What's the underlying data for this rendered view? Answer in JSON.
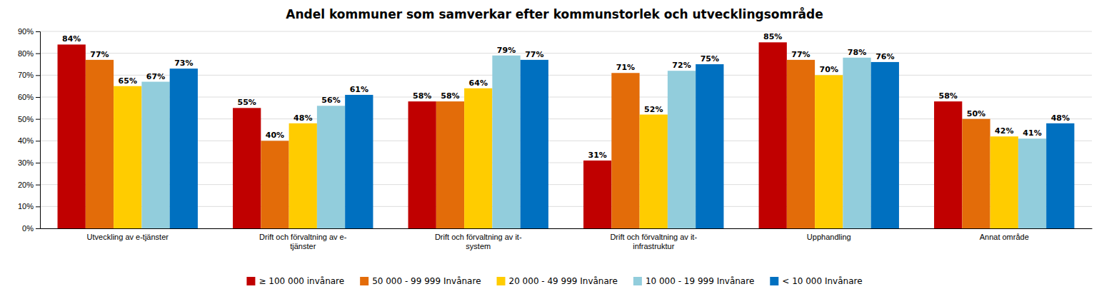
{
  "chart_data": {
    "type": "bar",
    "title": "Andel kommuner som samverkar  efter kommunstorlek och utvecklingsområde",
    "categories": [
      "Utveckling av e-tjänster",
      "Drift och förvaltning av e-\ntjänster",
      "Drift och förvaltning av it-\nsystem",
      "Drift och förvaltning av it-\ninfrastruktur",
      "Upphandling",
      "Annat område"
    ],
    "series": [
      {
        "name": "≥ 100 000 invånare",
        "color": "#C00000",
        "values": [
          84,
          55,
          58,
          31,
          85,
          58
        ],
        "value_labels": [
          "84%",
          "55%",
          "58%",
          "31%",
          "85%",
          "58%"
        ]
      },
      {
        "name": "50 000 - 99 999 Invånare",
        "color": "#E36C09",
        "values": [
          77,
          40,
          58,
          71,
          77,
          50
        ],
        "value_labels": [
          "77%",
          "40%",
          "58%",
          "71%",
          "77%",
          "50%"
        ]
      },
      {
        "name": "20 000 - 49 999 Invånare",
        "color": "#FFCC00",
        "values": [
          65,
          48,
          64,
          52,
          70,
          42
        ],
        "value_labels": [
          "65%",
          "48%",
          "64%",
          "52%",
          "70%",
          "42%"
        ]
      },
      {
        "name": "10 000 - 19 999 Invånare",
        "color": "#92CDDC",
        "values": [
          67,
          56,
          79,
          72,
          78,
          41
        ],
        "value_labels": [
          "67%",
          "56%",
          "79%",
          "72%",
          "78%",
          "41%"
        ]
      },
      {
        "name": "< 10 000 Invånare",
        "color": "#0070C0",
        "values": [
          73,
          61,
          77,
          75,
          76,
          48
        ],
        "value_labels": [
          "73%",
          "61%",
          "77%",
          "75%",
          "76%",
          "48%"
        ]
      }
    ],
    "ylim": [
      0,
      90
    ],
    "yticks": [
      {
        "value": 0,
        "label": "0%"
      },
      {
        "value": 10,
        "label": "10%"
      },
      {
        "value": 20,
        "label": "20%"
      },
      {
        "value": 30,
        "label": "30%"
      },
      {
        "value": 40,
        "label": "40%"
      },
      {
        "value": 50,
        "label": "50%"
      },
      {
        "value": 60,
        "label": "60%"
      },
      {
        "value": 70,
        "label": "70%"
      },
      {
        "value": 80,
        "label": "80%"
      },
      {
        "value": 90,
        "label": "90%"
      }
    ],
    "grid": true,
    "data_labels": true,
    "legend": "bottom"
  }
}
